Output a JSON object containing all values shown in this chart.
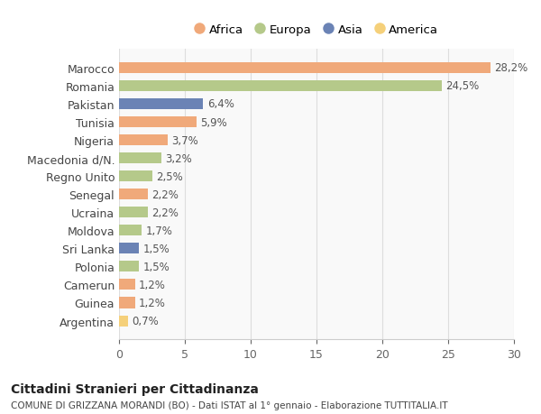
{
  "countries": [
    "Marocco",
    "Romania",
    "Pakistan",
    "Tunisia",
    "Nigeria",
    "Macedonia d/N.",
    "Regno Unito",
    "Senegal",
    "Ucraina",
    "Moldova",
    "Sri Lanka",
    "Polonia",
    "Camerun",
    "Guinea",
    "Argentina"
  ],
  "values": [
    28.2,
    24.5,
    6.4,
    5.9,
    3.7,
    3.2,
    2.5,
    2.2,
    2.2,
    1.7,
    1.5,
    1.5,
    1.2,
    1.2,
    0.7
  ],
  "labels": [
    "28,2%",
    "24,5%",
    "6,4%",
    "5,9%",
    "3,7%",
    "3,2%",
    "2,5%",
    "2,2%",
    "2,2%",
    "1,7%",
    "1,5%",
    "1,5%",
    "1,2%",
    "1,2%",
    "0,7%"
  ],
  "continents": [
    "Africa",
    "Europa",
    "Asia",
    "Africa",
    "Africa",
    "Europa",
    "Europa",
    "Africa",
    "Europa",
    "Europa",
    "Asia",
    "Europa",
    "Africa",
    "Africa",
    "America"
  ],
  "colors": {
    "Africa": "#F0A97A",
    "Europa": "#B5C98A",
    "Asia": "#6B83B5",
    "America": "#F5D07A"
  },
  "legend_order": [
    "Africa",
    "Europa",
    "Asia",
    "America"
  ],
  "title": "Cittadini Stranieri per Cittadinanza",
  "subtitle": "COMUNE DI GRIZZANA MORANDI (BO) - Dati ISTAT al 1° gennaio - Elaborazione TUTTITALIA.IT",
  "xlim": [
    0,
    30
  ],
  "xticks": [
    0,
    5,
    10,
    15,
    20,
    25,
    30
  ],
  "background_color": "#ffffff",
  "plot_bg_color": "#f9f9f9"
}
